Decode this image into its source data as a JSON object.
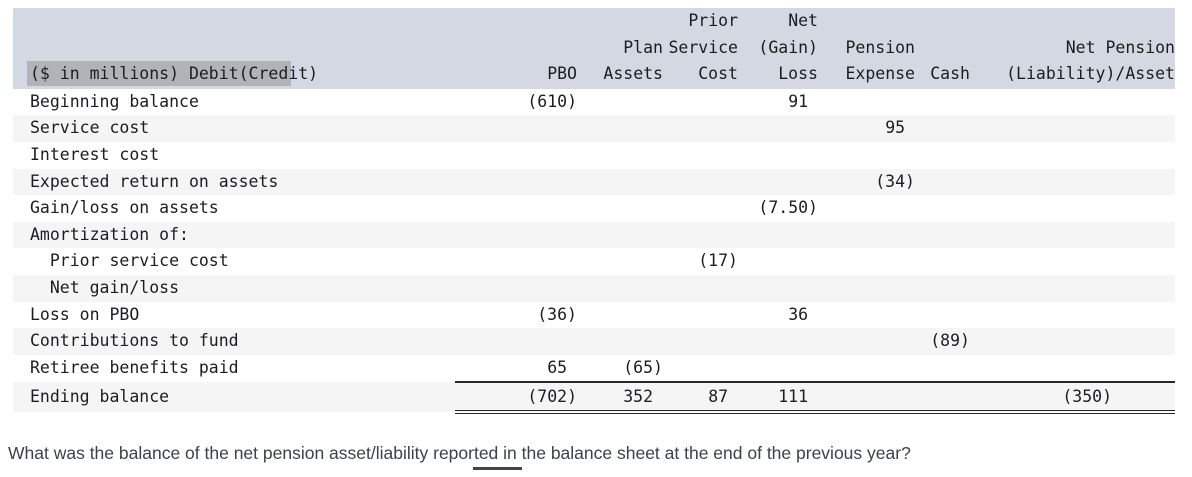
{
  "table": {
    "unit_label_selected": "($ in millions) Debit(Cred",
    "unit_label_rest": "it)",
    "columns": [
      {
        "id": "row-label",
        "header": ""
      },
      {
        "id": "pbo",
        "header": "PBO"
      },
      {
        "id": "plan-assets",
        "header": "Plan\nAssets"
      },
      {
        "id": "prior-service-cost",
        "header": "Prior\nService\nCost"
      },
      {
        "id": "net-gain-loss",
        "header": "Net\n(Gain)\nLoss"
      },
      {
        "id": "pension-expense",
        "header": "Pension\nExpense"
      },
      {
        "id": "cash",
        "header": "Cash"
      },
      {
        "id": "net-pension-liability-asset",
        "header": "Net Pension\n(Liability)/Asset"
      }
    ],
    "rows": [
      [
        "Beginning balance",
        "(610)",
        "",
        "",
        "91 ",
        "",
        "",
        ""
      ],
      [
        "Service cost",
        "",
        "",
        "",
        "",
        "95 ",
        "",
        ""
      ],
      [
        "Interest cost",
        "",
        "",
        "",
        "",
        "",
        "",
        ""
      ],
      [
        "Expected return on assets",
        "",
        "",
        "",
        "",
        "(34)",
        "",
        ""
      ],
      [
        "Gain/loss on assets",
        "",
        "",
        "",
        "(7.50)",
        "",
        "",
        ""
      ],
      [
        "Amortization of:",
        "",
        "",
        "",
        "",
        "",
        "",
        ""
      ],
      [
        "  Prior service cost",
        "",
        "",
        "(17)",
        "",
        "",
        "",
        ""
      ],
      [
        "  Net gain/loss",
        "",
        "",
        "",
        "",
        "",
        "",
        ""
      ],
      [
        "Loss on PBO",
        "(36)",
        "",
        "",
        "36 ",
        "",
        "",
        ""
      ],
      [
        "Contributions to fund",
        "",
        "",
        "",
        "",
        "",
        "(89)",
        ""
      ],
      [
        "Retiree benefits paid",
        "65 ",
        "(65)",
        "",
        "",
        "",
        "",
        ""
      ],
      [
        "Ending balance",
        "(702)",
        "352 ",
        "87 ",
        "111 ",
        "",
        "",
        "(350)"
      ]
    ]
  },
  "question": "What was the balance of the net pension asset/liability reported in the balance sheet at the end of the previous year?",
  "colors": {
    "header_band": "#d4d8e3",
    "selection_highlight": "#b1b3b9",
    "row_stripe": "#f5f5f6",
    "table_text": "#1c1d21",
    "question_text": "#3d4245"
  }
}
